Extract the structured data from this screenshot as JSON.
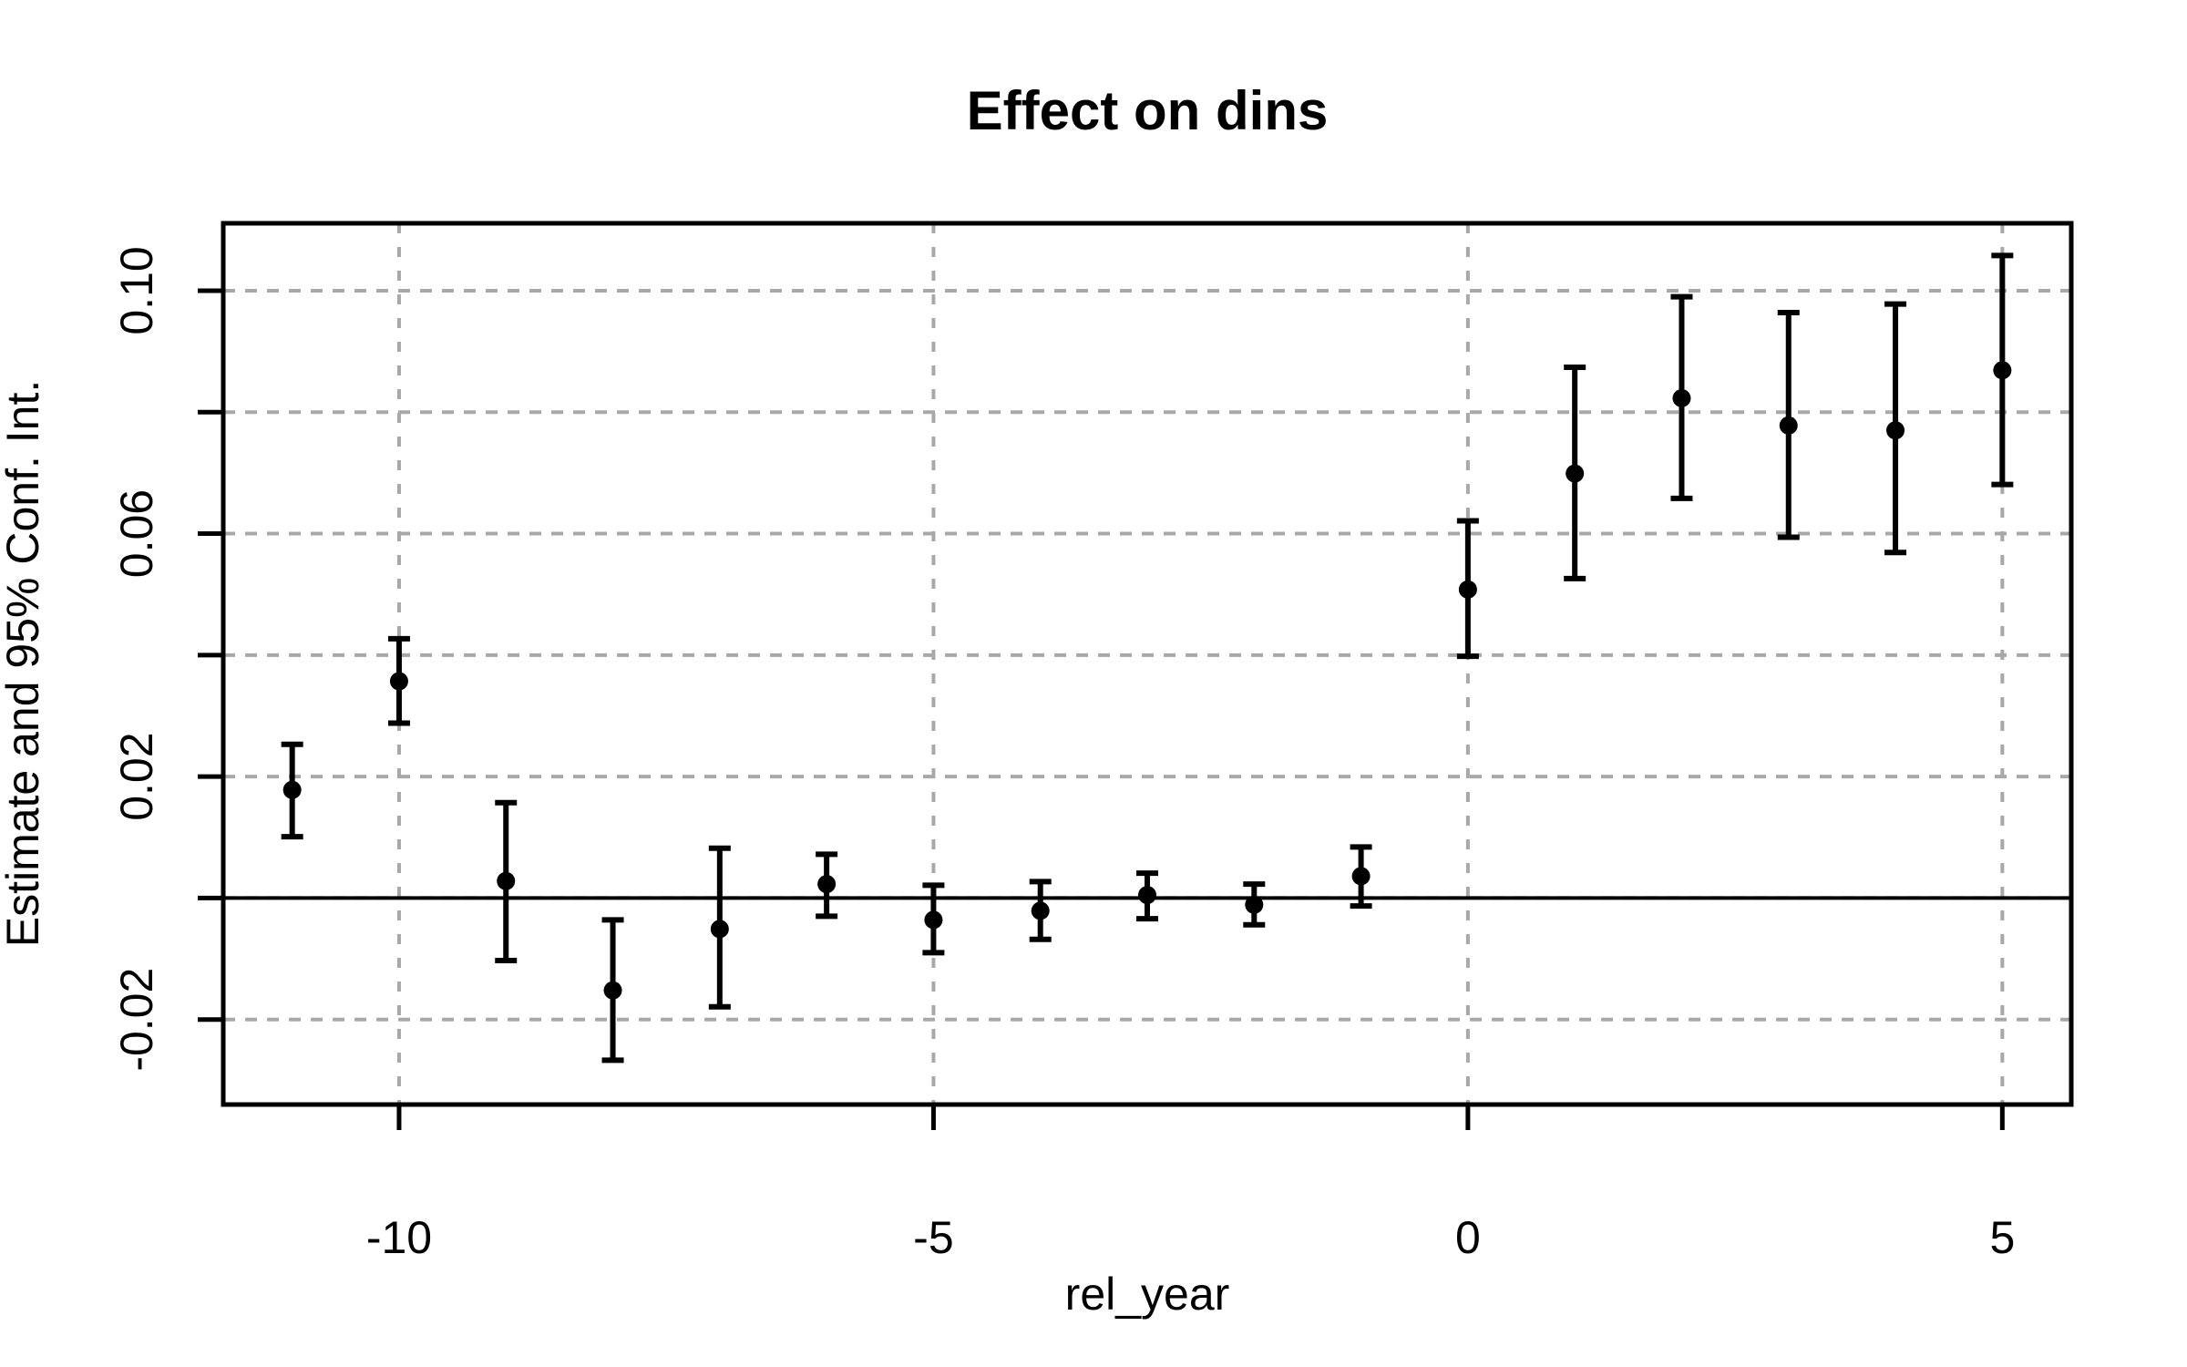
{
  "page": {
    "background": "#ffffff"
  },
  "chart_data": {
    "type": "scatter",
    "subtype": "point-estimates-with-error-bars",
    "title": "Effect on dins",
    "xlabel": "rel_year",
    "ylabel": "Estimate and 95% Conf. Int.",
    "xlim": [
      -11.645,
      5.645
    ],
    "ylim": [
      -0.034,
      0.1111
    ],
    "grid": true,
    "legend_position": "none",
    "zero_reference_line": 0,
    "x_ticks": [
      {
        "value": -10,
        "label": "-10"
      },
      {
        "value": -5,
        "label": "-5"
      },
      {
        "value": 0,
        "label": "0"
      },
      {
        "value": 5,
        "label": "5"
      }
    ],
    "y_minor_ticks": [
      -0.02,
      0,
      0.02,
      0.04,
      0.06,
      0.08,
      0.1
    ],
    "y_tick_labels": [
      {
        "value": -0.02,
        "label": "-0.02"
      },
      {
        "value": 0.02,
        "label": "0.02"
      },
      {
        "value": 0.06,
        "label": "0.06"
      },
      {
        "value": 0.1,
        "label": "0.10"
      }
    ],
    "series": [
      {
        "name": "estimate",
        "marker": "filled-circle",
        "color": "#000000",
        "points": [
          {
            "x": -11,
            "estimate": 0.0178,
            "ci_low": 0.0101,
            "ci_high": 0.0253
          },
          {
            "x": -10,
            "estimate": 0.0357,
            "ci_low": 0.0288,
            "ci_high": 0.0427
          },
          {
            "x": -9,
            "estimate": 0.0028,
            "ci_low": -0.0103,
            "ci_high": 0.0157
          },
          {
            "x": -8,
            "estimate": -0.0152,
            "ci_low": -0.0267,
            "ci_high": -0.0036
          },
          {
            "x": -7,
            "estimate": -0.0051,
            "ci_low": -0.0179,
            "ci_high": 0.0082
          },
          {
            "x": -6,
            "estimate": 0.0023,
            "ci_low": -0.003,
            "ci_high": 0.0072
          },
          {
            "x": -5,
            "estimate": -0.0036,
            "ci_low": -0.009,
            "ci_high": 0.0021
          },
          {
            "x": -4,
            "estimate": -0.0021,
            "ci_low": -0.0068,
            "ci_high": 0.0027
          },
          {
            "x": -3,
            "estimate": 0.0005,
            "ci_low": -0.0034,
            "ci_high": 0.0041
          },
          {
            "x": -2,
            "estimate": -0.0011,
            "ci_low": -0.0044,
            "ci_high": 0.0023
          },
          {
            "x": -1,
            "estimate": 0.0036,
            "ci_low": -0.0013,
            "ci_high": 0.0084
          },
          {
            "x": 0,
            "estimate": 0.0508,
            "ci_low": 0.0398,
            "ci_high": 0.0621
          },
          {
            "x": 1,
            "estimate": 0.0699,
            "ci_low": 0.0526,
            "ci_high": 0.0874
          },
          {
            "x": 2,
            "estimate": 0.0823,
            "ci_low": 0.0658,
            "ci_high": 0.099
          },
          {
            "x": 3,
            "estimate": 0.0778,
            "ci_low": 0.0594,
            "ci_high": 0.0964
          },
          {
            "x": 4,
            "estimate": 0.077,
            "ci_low": 0.0569,
            "ci_high": 0.0978
          },
          {
            "x": 5,
            "estimate": 0.0869,
            "ci_low": 0.0681,
            "ci_high": 0.1058
          }
        ]
      }
    ],
    "colors": {
      "points": "#000000",
      "error_bars": "#000000",
      "grid": "#a8a8a8",
      "axis": "#000000",
      "zero_line": "#000000",
      "background": "#ffffff"
    }
  }
}
